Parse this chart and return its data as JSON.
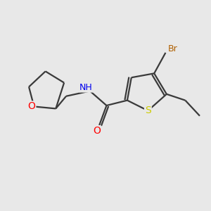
{
  "background_color": "#e8e8e8",
  "bond_color": "#3a3a3a",
  "atom_colors": {
    "O": "#ff0000",
    "N": "#0000ee",
    "S": "#cccc00",
    "Br": "#b06000",
    "C": "#3a3a3a",
    "H": "#3a3a3a"
  },
  "bond_width": 1.6,
  "font_size": 8.5,
  "fig_size": [
    3.0,
    3.0
  ],
  "dpi": 100,
  "xlim": [
    0,
    10
  ],
  "ylim": [
    0,
    10
  ]
}
